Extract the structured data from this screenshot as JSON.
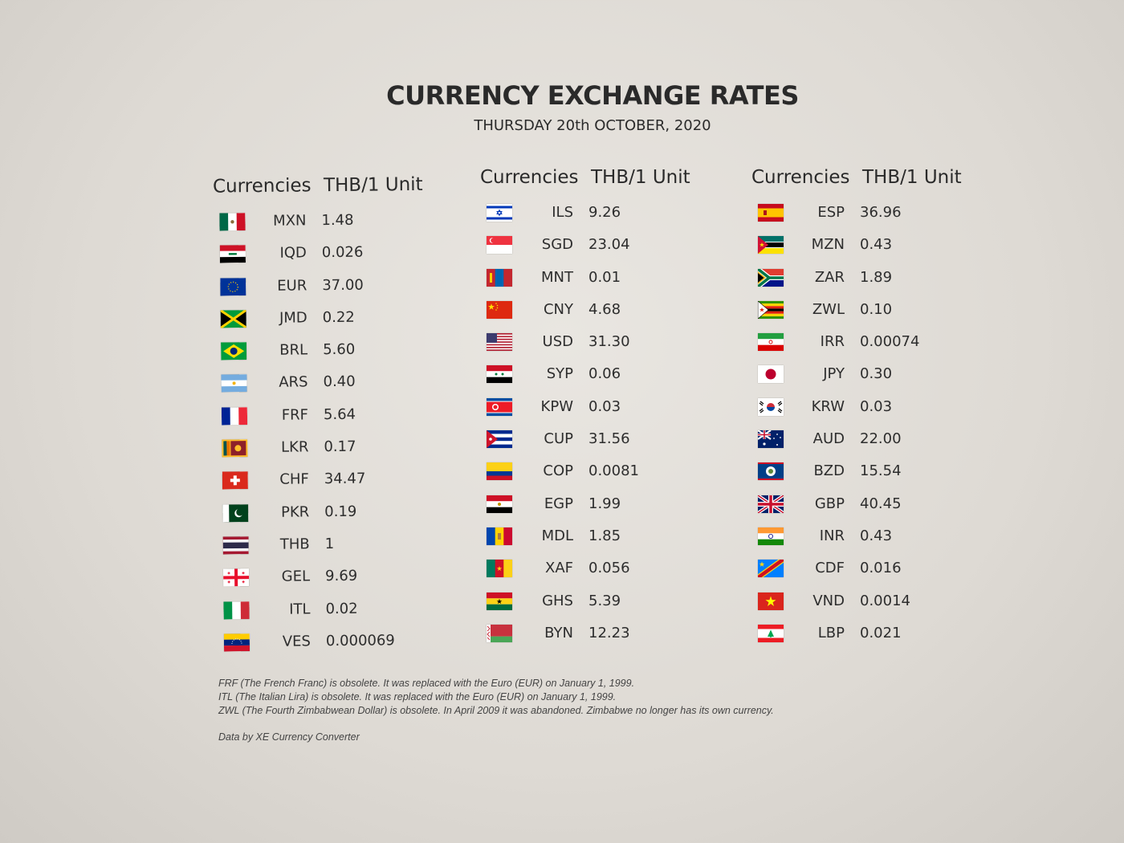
{
  "title": "CURRENCY EXCHANGE RATES",
  "subtitle": "THURSDAY 20th OCTOBER, 2020",
  "headers": {
    "currencies": "Currencies",
    "unit": "THB/1 Unit"
  },
  "columns": [
    {
      "rows": [
        {
          "code": "MXN",
          "rate": "1.48",
          "flag": "mexico-flag"
        },
        {
          "code": "IQD",
          "rate": "0.026",
          "flag": "iraq-flag"
        },
        {
          "code": "EUR",
          "rate": "37.00",
          "flag": "eu-flag"
        },
        {
          "code": "JMD",
          "rate": "0.22",
          "flag": "jamaica-flag"
        },
        {
          "code": "BRL",
          "rate": "5.60",
          "flag": "brazil-flag"
        },
        {
          "code": "ARS",
          "rate": "0.40",
          "flag": "argentina-flag"
        },
        {
          "code": "FRF",
          "rate": "5.64",
          "flag": "france-flag"
        },
        {
          "code": "LKR",
          "rate": "0.17",
          "flag": "sri-lanka-flag"
        },
        {
          "code": "CHF",
          "rate": "34.47",
          "flag": "switzerland-flag"
        },
        {
          "code": "PKR",
          "rate": "0.19",
          "flag": "pakistan-flag"
        },
        {
          "code": "THB",
          "rate": "1",
          "flag": "thailand-flag"
        },
        {
          "code": "GEL",
          "rate": "9.69",
          "flag": "georgia-flag"
        },
        {
          "code": "ITL",
          "rate": "0.02",
          "flag": "italy-flag"
        },
        {
          "code": "VES",
          "rate": "0.000069",
          "flag": "venezuela-flag"
        }
      ]
    },
    {
      "rows": [
        {
          "code": "ILS",
          "rate": "9.26",
          "flag": "israel-flag"
        },
        {
          "code": "SGD",
          "rate": "23.04",
          "flag": "singapore-flag"
        },
        {
          "code": "MNT",
          "rate": "0.01",
          "flag": "mongolia-flag"
        },
        {
          "code": "CNY",
          "rate": "4.68",
          "flag": "china-flag"
        },
        {
          "code": "USD",
          "rate": "31.30",
          "flag": "usa-flag"
        },
        {
          "code": "SYP",
          "rate": "0.06",
          "flag": "syria-flag"
        },
        {
          "code": "KPW",
          "rate": "0.03",
          "flag": "north-korea-flag"
        },
        {
          "code": "CUP",
          "rate": "31.56",
          "flag": "cuba-flag"
        },
        {
          "code": "COP",
          "rate": "0.0081",
          "flag": "colombia-flag"
        },
        {
          "code": "EGP",
          "rate": "1.99",
          "flag": "egypt-flag"
        },
        {
          "code": "MDL",
          "rate": "1.85",
          "flag": "moldova-flag"
        },
        {
          "code": "XAF",
          "rate": "0.056",
          "flag": "cameroon-flag"
        },
        {
          "code": "GHS",
          "rate": "5.39",
          "flag": "ghana-flag"
        },
        {
          "code": "BYN",
          "rate": "12.23",
          "flag": "belarus-flag"
        }
      ]
    },
    {
      "rows": [
        {
          "code": "ESP",
          "rate": "36.96",
          "flag": "spain-flag"
        },
        {
          "code": "MZN",
          "rate": "0.43",
          "flag": "mozambique-flag"
        },
        {
          "code": "ZAR",
          "rate": "1.89",
          "flag": "south-africa-flag"
        },
        {
          "code": "ZWL",
          "rate": "0.10",
          "flag": "zimbabwe-flag"
        },
        {
          "code": "IRR",
          "rate": "0.00074",
          "flag": "iran-flag"
        },
        {
          "code": "JPY",
          "rate": "0.30",
          "flag": "japan-flag"
        },
        {
          "code": "KRW",
          "rate": "0.03",
          "flag": "south-korea-flag"
        },
        {
          "code": "AUD",
          "rate": "22.00",
          "flag": "australia-flag"
        },
        {
          "code": "BZD",
          "rate": "15.54",
          "flag": "belize-flag"
        },
        {
          "code": "GBP",
          "rate": "40.45",
          "flag": "uk-flag"
        },
        {
          "code": "INR",
          "rate": "0.43",
          "flag": "india-flag"
        },
        {
          "code": "CDF",
          "rate": "0.016",
          "flag": "dr-congo-flag"
        },
        {
          "code": "VND",
          "rate": "0.0014",
          "flag": "vietnam-flag"
        },
        {
          "code": "LBP",
          "rate": "0.021",
          "flag": "lebanon-flag"
        }
      ]
    }
  ],
  "notes": [
    "FRF (The French Franc) is obsolete. It was replaced with the Euro (EUR) on January 1, 1999.",
    "ITL (The Italian Lira) is obsolete. It was replaced with the Euro (EUR) on January 1, 1999.",
    "ZWL (The Fourth Zimbabwean Dollar) is obsolete. In April 2009 it was abandoned. Zimbabwe no longer has its own currency."
  ],
  "source": "Data by XE Currency Converter"
}
